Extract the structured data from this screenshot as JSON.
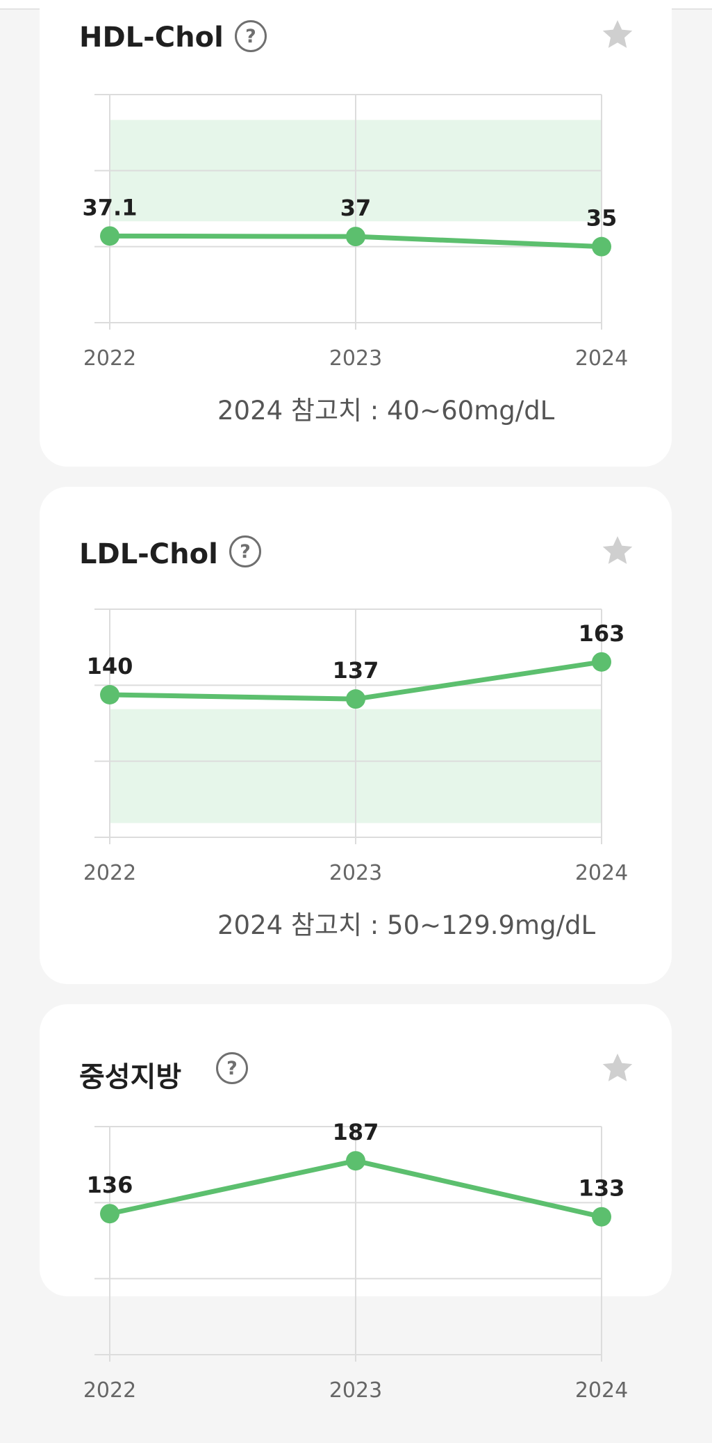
{
  "header": {
    "active_tab_color": "#5cbf6e"
  },
  "cards": [
    {
      "title": "HDL-Chol",
      "help_icon": "question-circle-icon",
      "favorite_icon": "star-icon",
      "reference_text": "2024 참고치 : 40~60mg/dL",
      "chart_data": {
        "type": "line",
        "title": "HDL-Chol",
        "x": [
          "2022",
          "2023",
          "2024"
        ],
        "values": [
          37.1,
          37,
          35
        ],
        "value_labels": [
          "37.1",
          "37",
          "35"
        ],
        "xlabel": "",
        "ylabel": "",
        "ylim": [
          20,
          65
        ],
        "reference_range": [
          40,
          60
        ],
        "line_color": "#5cbf6e",
        "band_color": "#e6f6ea",
        "grid": true
      }
    },
    {
      "title": "LDL-Chol",
      "help_icon": "question-circle-icon",
      "favorite_icon": "star-icon",
      "reference_text": "2024 참고치 : 50~129.9mg/dL",
      "chart_data": {
        "type": "line",
        "title": "LDL-Chol",
        "x": [
          "2022",
          "2023",
          "2024"
        ],
        "values": [
          140,
          137,
          163
        ],
        "value_labels": [
          "140",
          "137",
          "163"
        ],
        "xlabel": "",
        "ylabel": "",
        "ylim": [
          40,
          200
        ],
        "reference_range": [
          50,
          129.9
        ],
        "line_color": "#5cbf6e",
        "band_color": "#e6f6ea",
        "grid": true
      }
    },
    {
      "title": "중성지방",
      "help_icon": "question-circle-icon",
      "favorite_icon": "star-icon",
      "reference_text": "",
      "chart_data": {
        "type": "line",
        "title": "중성지방",
        "x": [
          "2022",
          "2023",
          "2024"
        ],
        "values": [
          136,
          187,
          133
        ],
        "value_labels": [
          "136",
          "187",
          "133"
        ],
        "xlabel": "",
        "ylabel": "",
        "ylim": [
          0,
          220
        ],
        "reference_range": null,
        "line_color": "#5cbf6e",
        "band_color": "#e6f6ea",
        "grid": true
      }
    }
  ]
}
